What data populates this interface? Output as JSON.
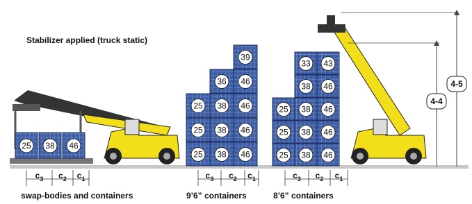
{
  "caption": "Stabilizer applied (truck static)",
  "groups": [
    {
      "label": "swap-bodies and containers",
      "stacks": [
        [
          25
        ],
        [
          38
        ],
        [
          46
        ]
      ],
      "dims": [
        [
          "c",
          "3"
        ],
        [
          "c",
          "2"
        ],
        [
          "c",
          "1"
        ]
      ]
    },
    {
      "label": "9’6” containers",
      "stacks": [
        [
          25,
          25,
          25
        ],
        [
          38,
          38,
          38,
          36
        ],
        [
          46,
          46,
          46,
          46,
          39
        ]
      ],
      "dims": [
        [
          "c",
          "3"
        ],
        [
          "c",
          "2"
        ],
        [
          "c",
          "1"
        ]
      ]
    },
    {
      "label": "8’6” containers",
      "stacks": [
        [
          25,
          25,
          25
        ],
        [
          38,
          38,
          38,
          38,
          33
        ],
        [
          46,
          46,
          46,
          46,
          43
        ]
      ],
      "dims": [
        [
          "c",
          "3"
        ],
        [
          "c",
          "2"
        ],
        [
          "c",
          "1"
        ]
      ]
    }
  ],
  "heights": [
    "4-4",
    "4-5"
  ]
}
